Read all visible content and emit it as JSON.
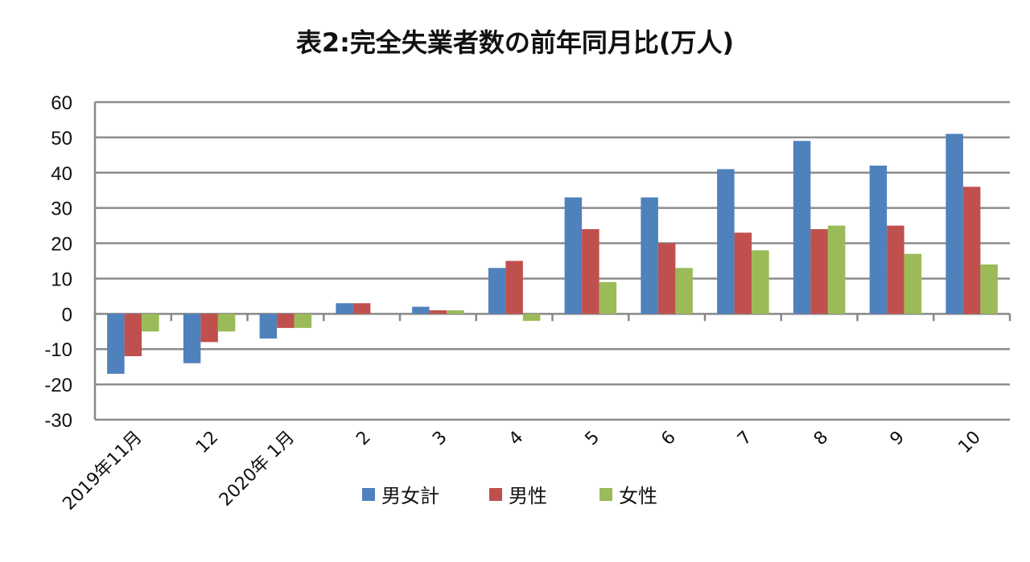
{
  "chart_data": {
    "type": "bar",
    "title": "表2:完全失業者数の前年同月比(万人)",
    "xlabel": "",
    "ylabel": "",
    "ylim": [
      -30,
      60
    ],
    "yticks": [
      60,
      50,
      40,
      30,
      20,
      10,
      0,
      -10,
      -20,
      -30
    ],
    "grid": true,
    "legend_position": "bottom",
    "categories": [
      "2019年11月",
      "12",
      "2020年 1月",
      "2",
      "3",
      "4",
      "5",
      "6",
      "7",
      "8",
      "9",
      "10"
    ],
    "series": [
      {
        "name": "男女計",
        "color": "#4f81bd",
        "values": [
          -17,
          -14,
          -7,
          3,
          2,
          13,
          33,
          33,
          41,
          49,
          42,
          51
        ]
      },
      {
        "name": "男性",
        "color": "#c0504d",
        "values": [
          -12,
          -8,
          -4,
          3,
          1,
          15,
          24,
          20,
          23,
          24,
          25,
          36
        ]
      },
      {
        "name": "女性",
        "color": "#9bbb59",
        "values": [
          -5,
          -5,
          -4,
          0,
          1,
          -2,
          9,
          13,
          18,
          25,
          17,
          14
        ]
      }
    ]
  }
}
